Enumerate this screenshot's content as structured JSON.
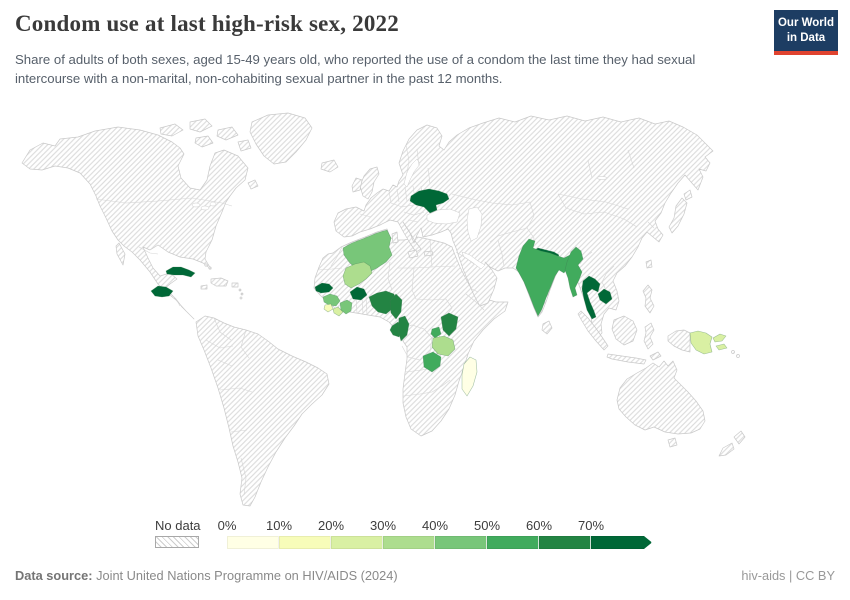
{
  "header": {
    "title": "Condom use at last high-risk sex, 2022",
    "subtitle": "Share of adults of both sexes, aged 15-49 years old, who reported the use of a condom the last time they had sexual intercourse with a non-marital, non-cohabiting sexual partner in the past 12 months.",
    "logo": {
      "line1": "Our World",
      "line2": "in Data",
      "bg_color": "#1d3d63",
      "accent_color": "#e0432f"
    }
  },
  "legend": {
    "no_data_label": "No data",
    "tick_labels": [
      "0%",
      "10%",
      "20%",
      "30%",
      "40%",
      "50%",
      "60%",
      "70%"
    ],
    "bins": [
      {
        "label": "0-10%",
        "color": "#ffffe5"
      },
      {
        "label": "10-20%",
        "color": "#f7fcb9"
      },
      {
        "label": "20-30%",
        "color": "#d9f0a3"
      },
      {
        "label": "30-40%",
        "color": "#addd8e"
      },
      {
        "label": "40-50%",
        "color": "#78c679"
      },
      {
        "label": "50-60%",
        "color": "#41ab5d"
      },
      {
        "label": "60-70%",
        "color": "#238443"
      },
      {
        "label": "70%+",
        "color": "#006837"
      }
    ]
  },
  "footer": {
    "source_label": "Data source:",
    "source_text": " Joint United Nations Programme on HIV/AIDS (2024)",
    "credit": "hiv-aids | CC BY"
  },
  "chart_data": {
    "type": "choropleth",
    "title": "Condom use at last high-risk sex, 2022",
    "unit": "%",
    "colorscale": "YlGn",
    "no_data_style": "hatched",
    "legend_range": [
      "0%",
      "70%+"
    ],
    "countries": [
      {
        "id": "cuba",
        "name": "Cuba",
        "bin": "70%+",
        "color": "#006837"
      },
      {
        "id": "honduras",
        "name": "Honduras",
        "bin": "70%+",
        "color": "#006837"
      },
      {
        "id": "ukraine",
        "name": "Ukraine",
        "bin": "70%+",
        "color": "#006837"
      },
      {
        "id": "senegal",
        "name": "Senegal",
        "bin": "70%+",
        "color": "#006837"
      },
      {
        "id": "burkina-faso",
        "name": "Burkina Faso",
        "bin": "70%+",
        "color": "#006837"
      },
      {
        "id": "nepal",
        "name": "Nepal",
        "bin": "70%+",
        "color": "#006837"
      },
      {
        "id": "thailand",
        "name": "Thailand",
        "bin": "70%+",
        "color": "#006837"
      },
      {
        "id": "cambodia",
        "name": "Cambodia",
        "bin": "70%+",
        "color": "#006837"
      },
      {
        "id": "nigeria",
        "name": "Nigeria",
        "bin": "60-70%",
        "color": "#238443"
      },
      {
        "id": "cameroon",
        "name": "Cameroon",
        "bin": "60-70%",
        "color": "#238443"
      },
      {
        "id": "gabon",
        "name": "Gabon",
        "bin": "60-70%",
        "color": "#238443"
      },
      {
        "id": "congo",
        "name": "Congo",
        "bin": "60-70%",
        "color": "#238443"
      },
      {
        "id": "kenya",
        "name": "Kenya",
        "bin": "60-70%",
        "color": "#238443"
      },
      {
        "id": "uganda",
        "name": "Uganda",
        "bin": "50-60%",
        "color": "#41ab5d"
      },
      {
        "id": "zambia",
        "name": "Zambia",
        "bin": "50-60%",
        "color": "#41ab5d"
      },
      {
        "id": "india",
        "name": "India",
        "bin": "50-60%",
        "color": "#41ab5d"
      },
      {
        "id": "myanmar",
        "name": "Myanmar",
        "bin": "50-60%",
        "color": "#41ab5d"
      },
      {
        "id": "algeria",
        "name": "Algeria",
        "bin": "40-50%",
        "color": "#78c679"
      },
      {
        "id": "guinea",
        "name": "Guinea",
        "bin": "40-50%",
        "color": "#78c679"
      },
      {
        "id": "cote-divoire",
        "name": "Cote d'Ivoire",
        "bin": "40-50%",
        "color": "#78c679"
      },
      {
        "id": "mali",
        "name": "Mali",
        "bin": "30-40%",
        "color": "#addd8e"
      },
      {
        "id": "tanzania",
        "name": "Tanzania",
        "bin": "30-40%",
        "color": "#addd8e"
      },
      {
        "id": "liberia",
        "name": "Liberia",
        "bin": "20-30%",
        "color": "#d9f0a3"
      },
      {
        "id": "papua-new-guinea",
        "name": "Papua New Guinea",
        "bin": "20-30%",
        "color": "#d9f0a3"
      },
      {
        "id": "sierra-leone",
        "name": "Sierra Leone",
        "bin": "10-20%",
        "color": "#f7fcb9"
      },
      {
        "id": "madagascar",
        "name": "Madagascar",
        "bin": "0-10%",
        "color": "#ffffe5"
      }
    ]
  }
}
